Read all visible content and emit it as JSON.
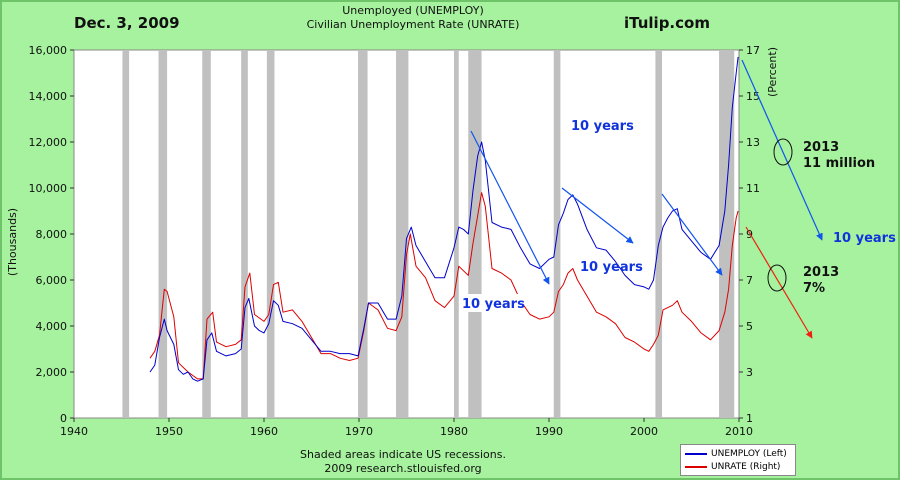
{
  "header": {
    "date": "Dec. 3, 2009",
    "site": "iTulip.com",
    "title_line1": "Unemployed (UNEMPLOY)",
    "title_line2": "Civilian Unemployment Rate (UNRATE)"
  },
  "footer": {
    "line1": "Shaded areas indicate US recessions.",
    "line2": "2009 research.stlouisfed.org"
  },
  "colors": {
    "unemploy": "#0000cc",
    "unrate": "#dd0000",
    "recession": "#c0c0c0",
    "arrow_blue": "#1155ee",
    "arrow_red": "#ee2211",
    "background": "#a6f29e"
  },
  "legend": {
    "unemploy_label": "UNEMPLOY (Left)",
    "unrate_label": "UNRATE (Right)"
  },
  "annotations": {
    "ten_years": "10 years",
    "y2013": "2013",
    "eleven_million": "11 million",
    "seven_percent": "7%"
  },
  "chart_data": {
    "type": "line",
    "xlim": [
      1940,
      2010
    ],
    "x_ticks": [
      1940,
      1950,
      1960,
      1970,
      1980,
      1990,
      2000,
      2010
    ],
    "y_left": {
      "label": "(Thousands)",
      "lim": [
        0,
        16000
      ],
      "ticks": [
        0,
        2000,
        4000,
        6000,
        8000,
        10000,
        12000,
        14000,
        16000
      ],
      "tick_labels": [
        "0",
        "2,000",
        "4,000",
        "6,000",
        "8,000",
        "10,000",
        "12,000",
        "14,000",
        "16,000"
      ]
    },
    "y_right": {
      "label": "(Percent)",
      "lim": [
        1,
        17
      ],
      "ticks": [
        1,
        3,
        5,
        7,
        9,
        11,
        13,
        15,
        17
      ]
    },
    "recessions": [
      [
        1945.1,
        1945.8
      ],
      [
        1948.9,
        1949.8
      ],
      [
        1953.5,
        1954.4
      ],
      [
        1957.6,
        1958.3
      ],
      [
        1960.3,
        1961.1
      ],
      [
        1969.9,
        1970.9
      ],
      [
        1973.9,
        1975.2
      ],
      [
        1980.0,
        1980.5
      ],
      [
        1981.5,
        1982.9
      ],
      [
        1990.5,
        1991.2
      ],
      [
        2001.2,
        2001.9
      ],
      [
        2007.9,
        2009.5
      ]
    ],
    "series": [
      {
        "name": "UNEMPLOY (Left)",
        "axis": "left",
        "x": [
          1948.0,
          1948.5,
          1949.0,
          1949.5,
          1949.8,
          1950.5,
          1951.0,
          1951.5,
          1952.0,
          1952.5,
          1953.0,
          1953.6,
          1954.0,
          1954.5,
          1955.0,
          1956.0,
          1957.0,
          1957.6,
          1958.0,
          1958.4,
          1959.0,
          1959.5,
          1960.0,
          1960.5,
          1961.0,
          1961.5,
          1962.0,
          1963.0,
          1964.0,
          1965.0,
          1966.0,
          1967.0,
          1968.0,
          1969.0,
          1969.9,
          1970.5,
          1971.0,
          1972.0,
          1973.0,
          1973.9,
          1974.5,
          1975.0,
          1975.5,
          1976.0,
          1977.0,
          1978.0,
          1979.0,
          1980.0,
          1980.5,
          1981.0,
          1981.5,
          1982.0,
          1982.5,
          1982.9,
          1983.3,
          1984.0,
          1985.0,
          1986.0,
          1987.0,
          1988.0,
          1989.0,
          1990.0,
          1990.5,
          1991.0,
          1991.5,
          1992.0,
          1992.5,
          1993.0,
          1994.0,
          1995.0,
          1996.0,
          1997.0,
          1998.0,
          1999.0,
          2000.0,
          2000.5,
          2001.0,
          2001.5,
          2002.0,
          2002.5,
          2003.0,
          2003.5,
          2004.0,
          2005.0,
          2006.0,
          2007.0,
          2007.9,
          2008.5,
          2008.9,
          2009.3,
          2009.7,
          2009.9
        ],
        "values": [
          2000,
          2300,
          3500,
          4300,
          3800,
          3200,
          2100,
          1900,
          2000,
          1700,
          1600,
          1700,
          3400,
          3700,
          2900,
          2700,
          2800,
          3000,
          4800,
          5200,
          4000,
          3800,
          3700,
          4100,
          5100,
          4900,
          4200,
          4100,
          3900,
          3400,
          2900,
          2900,
          2800,
          2800,
          2700,
          3900,
          5000,
          5000,
          4300,
          4300,
          5300,
          7800,
          8300,
          7500,
          6800,
          6100,
          6100,
          7400,
          8300,
          8200,
          8000,
          9900,
          11400,
          12000,
          11200,
          8500,
          8300,
          8200,
          7400,
          6700,
          6500,
          6900,
          7000,
          8400,
          8900,
          9500,
          9700,
          9300,
          8200,
          7400,
          7300,
          6800,
          6200,
          5800,
          5700,
          5600,
          6000,
          7500,
          8300,
          8700,
          9000,
          9100,
          8200,
          7700,
          7200,
          6900,
          7500,
          9000,
          11000,
          13500,
          15000,
          15700
        ]
      },
      {
        "name": "UNRATE (Right)",
        "axis": "right",
        "x": [
          1948.0,
          1948.5,
          1949.0,
          1949.5,
          1949.8,
          1950.5,
          1951.0,
          1952.0,
          1953.0,
          1953.6,
          1954.0,
          1954.6,
          1955.0,
          1956.0,
          1957.0,
          1957.6,
          1958.0,
          1958.5,
          1959.0,
          1960.0,
          1960.5,
          1961.0,
          1961.5,
          1962.0,
          1963.0,
          1964.0,
          1965.0,
          1966.0,
          1967.0,
          1968.0,
          1969.0,
          1969.9,
          1970.5,
          1971.0,
          1972.0,
          1973.0,
          1973.9,
          1974.5,
          1975.0,
          1975.4,
          1976.0,
          1977.0,
          1978.0,
          1979.0,
          1980.0,
          1980.5,
          1981.0,
          1981.5,
          1982.0,
          1982.5,
          1982.9,
          1983.3,
          1984.0,
          1985.0,
          1986.0,
          1987.0,
          1988.0,
          1989.0,
          1990.0,
          1990.5,
          1991.0,
          1991.5,
          1992.0,
          1992.5,
          1993.0,
          1994.0,
          1995.0,
          1996.0,
          1997.0,
          1998.0,
          1999.0,
          2000.0,
          2000.5,
          2001.0,
          2001.5,
          2002.0,
          2002.5,
          2003.0,
          2003.5,
          2004.0,
          2005.0,
          2006.0,
          2007.0,
          2007.9,
          2008.5,
          2008.9,
          2009.3,
          2009.7,
          2009.9
        ],
        "values": [
          3.6,
          3.9,
          4.6,
          6.6,
          6.5,
          5.4,
          3.4,
          3.0,
          2.7,
          2.7,
          5.3,
          5.6,
          4.3,
          4.1,
          4.2,
          4.4,
          6.7,
          7.3,
          5.5,
          5.2,
          5.5,
          6.8,
          6.9,
          5.6,
          5.7,
          5.2,
          4.5,
          3.8,
          3.8,
          3.6,
          3.5,
          3.6,
          4.8,
          6.0,
          5.7,
          4.9,
          4.8,
          5.4,
          8.1,
          9.0,
          7.6,
          7.1,
          6.1,
          5.8,
          6.3,
          7.6,
          7.4,
          7.2,
          8.6,
          9.8,
          10.8,
          10.2,
          7.5,
          7.3,
          7.0,
          6.1,
          5.5,
          5.3,
          5.4,
          5.6,
          6.5,
          6.8,
          7.3,
          7.5,
          7.0,
          6.3,
          5.6,
          5.4,
          5.1,
          4.5,
          4.3,
          4.0,
          3.9,
          4.2,
          4.6,
          5.7,
          5.8,
          5.9,
          6.1,
          5.6,
          5.2,
          4.7,
          4.4,
          4.8,
          5.6,
          6.6,
          8.5,
          9.7,
          10.0
        ]
      }
    ]
  }
}
